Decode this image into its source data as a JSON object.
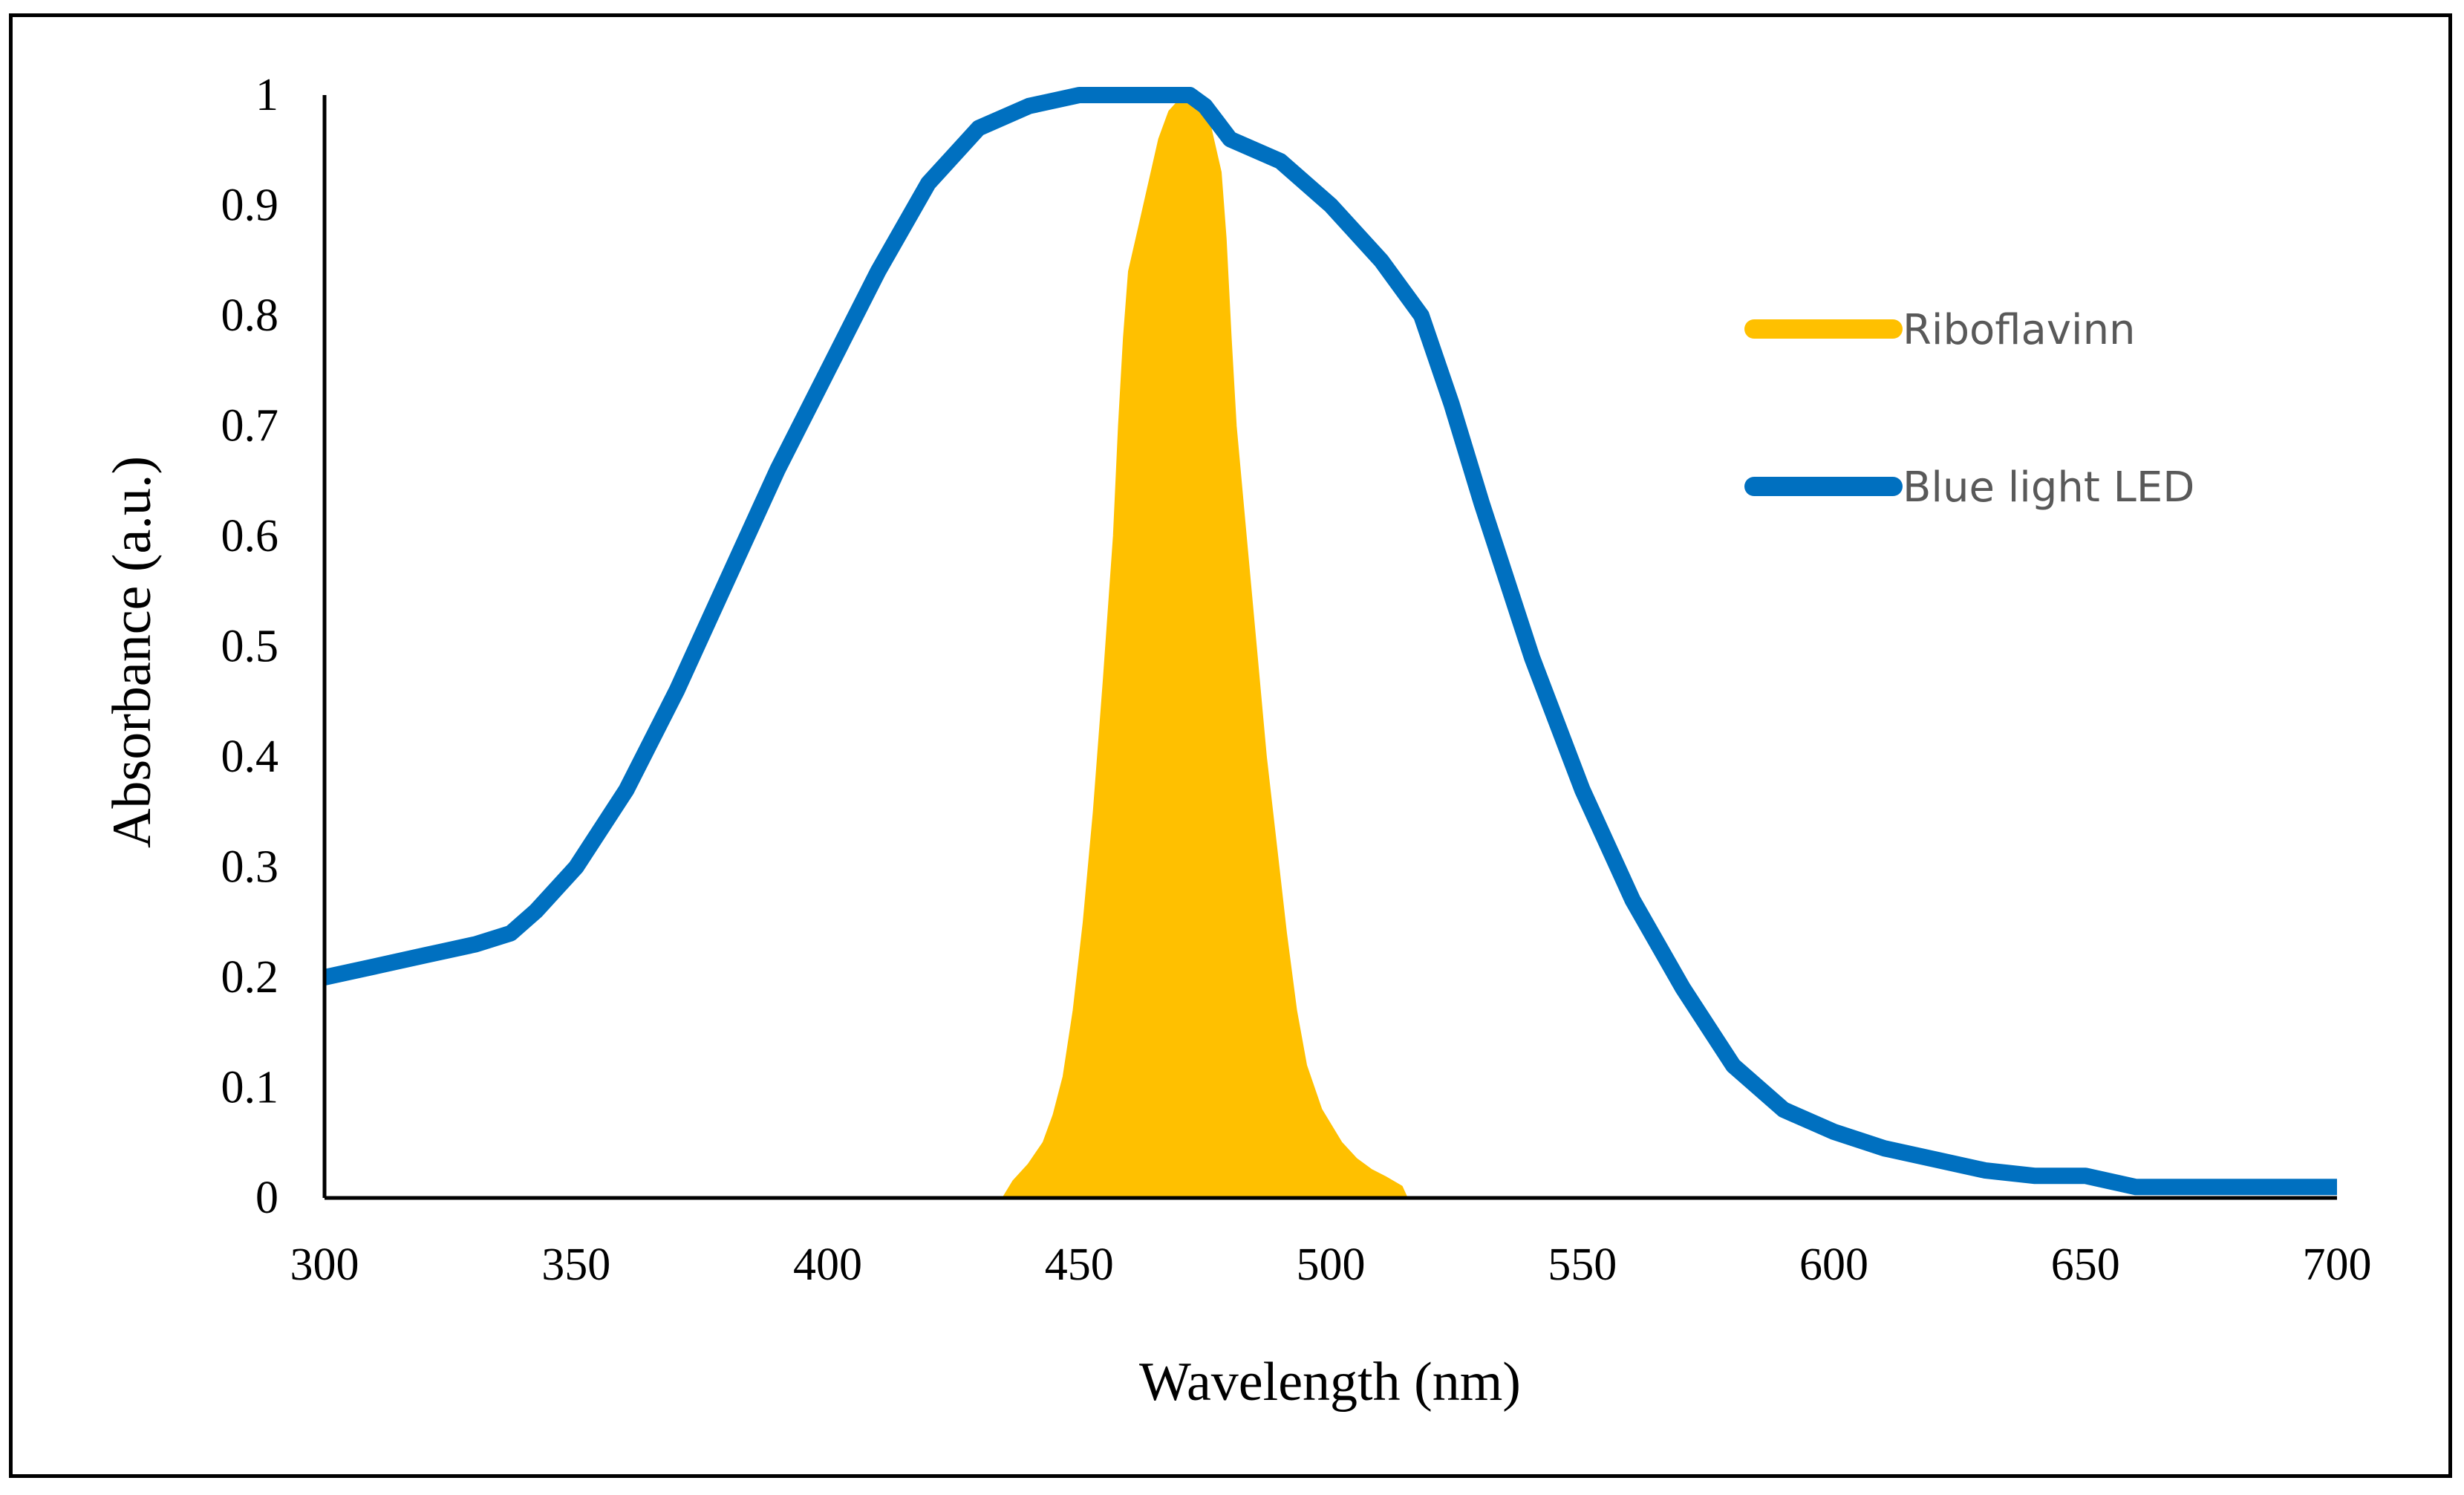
{
  "chart_data": {
    "type": "area",
    "title": "",
    "xlabel": "Wavelength (nm)",
    "ylabel": "Absorbance (a.u.)",
    "xlim": [
      300,
      700
    ],
    "ylim": [
      0,
      1
    ],
    "x_ticks": [
      300,
      350,
      400,
      450,
      500,
      550,
      600,
      650,
      700
    ],
    "y_ticks": [
      0,
      0.1,
      0.2,
      0.3,
      0.4,
      0.5,
      0.6,
      0.7,
      0.8,
      0.9,
      1
    ],
    "x_tick_labels": [
      "300",
      "350",
      "400",
      "450",
      "500",
      "550",
      "600",
      "650",
      "700"
    ],
    "y_tick_labels": [
      "0",
      "0.1",
      "0.2",
      "0.3",
      "0.4",
      "0.5",
      "0.6",
      "0.7",
      "0.8",
      "0.9",
      "1"
    ],
    "legend_position": "right",
    "series": [
      {
        "name": "Riboflavinn",
        "type": "area",
        "color": "#FFC000",
        "points": [
          [
            435,
            0
          ],
          [
            437,
            0.015
          ],
          [
            440,
            0.03
          ],
          [
            443,
            0.05
          ],
          [
            445,
            0.075
          ],
          [
            447,
            0.11
          ],
          [
            449,
            0.17
          ],
          [
            451,
            0.25
          ],
          [
            453,
            0.35
          ],
          [
            455,
            0.47
          ],
          [
            457,
            0.6
          ],
          [
            458,
            0.7
          ],
          [
            459,
            0.78
          ],
          [
            460,
            0.84
          ],
          [
            462,
            0.88
          ],
          [
            464,
            0.92
          ],
          [
            466,
            0.96
          ],
          [
            468,
            0.985
          ],
          [
            470,
            0.995
          ],
          [
            472,
            1.0
          ],
          [
            474,
            0.99
          ],
          [
            476,
            0.97
          ],
          [
            478,
            0.93
          ],
          [
            479,
            0.87
          ],
          [
            480,
            0.78
          ],
          [
            481,
            0.7
          ],
          [
            483,
            0.6
          ],
          [
            485,
            0.5
          ],
          [
            487,
            0.4
          ],
          [
            489,
            0.32
          ],
          [
            491,
            0.24
          ],
          [
            493,
            0.17
          ],
          [
            495,
            0.12
          ],
          [
            498,
            0.08
          ],
          [
            502,
            0.05
          ],
          [
            505,
            0.035
          ],
          [
            508,
            0.025
          ],
          [
            511,
            0.018
          ],
          [
            514,
            0.01
          ],
          [
            515,
            0
          ]
        ]
      },
      {
        "name": "Blue light LED",
        "type": "line",
        "color": "#0070C0",
        "points": [
          [
            300,
            0.2
          ],
          [
            310,
            0.21
          ],
          [
            320,
            0.22
          ],
          [
            330,
            0.23
          ],
          [
            337,
            0.24
          ],
          [
            342,
            0.26
          ],
          [
            350,
            0.3
          ],
          [
            360,
            0.37
          ],
          [
            370,
            0.46
          ],
          [
            380,
            0.56
          ],
          [
            390,
            0.66
          ],
          [
            400,
            0.75
          ],
          [
            410,
            0.84
          ],
          [
            420,
            0.92
          ],
          [
            430,
            0.97
          ],
          [
            440,
            0.99
          ],
          [
            450,
            1.0
          ],
          [
            460,
            1.0
          ],
          [
            468,
            1.0
          ],
          [
            472,
            1.0
          ],
          [
            475,
            0.99
          ],
          [
            480,
            0.96
          ],
          [
            490,
            0.94
          ],
          [
            500,
            0.9
          ],
          [
            510,
            0.85
          ],
          [
            518,
            0.8
          ],
          [
            524,
            0.72
          ],
          [
            530,
            0.63
          ],
          [
            540,
            0.49
          ],
          [
            550,
            0.37
          ],
          [
            560,
            0.27
          ],
          [
            570,
            0.19
          ],
          [
            580,
            0.12
          ],
          [
            590,
            0.08
          ],
          [
            600,
            0.06
          ],
          [
            610,
            0.045
          ],
          [
            620,
            0.035
          ],
          [
            630,
            0.025
          ],
          [
            640,
            0.02
          ],
          [
            650,
            0.02
          ],
          [
            660,
            0.01
          ],
          [
            670,
            0.01
          ],
          [
            680,
            0.01
          ],
          [
            690,
            0.01
          ],
          [
            700,
            0.01
          ]
        ]
      }
    ]
  }
}
